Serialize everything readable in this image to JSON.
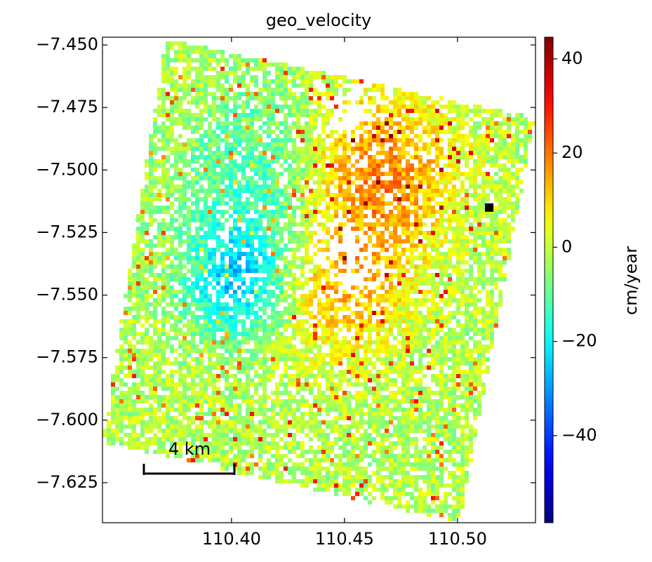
{
  "chart_data": {
    "type": "raster",
    "title": "geo_velocity",
    "colormap": "jet",
    "xlim": [
      110.3429,
      110.5345
    ],
    "ylim": [
      -7.641,
      -7.4469
    ],
    "xticks": [
      {
        "value": 110.4,
        "label": "110.40"
      },
      {
        "value": 110.45,
        "label": "110.45"
      },
      {
        "value": 110.5,
        "label": "110.50"
      }
    ],
    "yticks": [
      {
        "value": -7.45,
        "label": "−7.450"
      },
      {
        "value": -7.475,
        "label": "−7.475"
      },
      {
        "value": -7.5,
        "label": "−7.500"
      },
      {
        "value": -7.525,
        "label": "−7.525"
      },
      {
        "value": -7.55,
        "label": "−7.550"
      },
      {
        "value": -7.575,
        "label": "−7.575"
      },
      {
        "value": -7.6,
        "label": "−7.600"
      },
      {
        "value": -7.625,
        "label": "−7.625"
      }
    ],
    "colorbar": {
      "label": "cm/year",
      "clim": [
        -58.5,
        44.6
      ],
      "ticks": [
        40,
        20,
        0,
        {
          "value": -20,
          "label": "−20"
        },
        {
          "value": -40,
          "label": "−40"
        }
      ]
    },
    "reference_point": {
      "x": 110.514,
      "y": -7.515,
      "color": "#000000"
    },
    "scale_bar": {
      "label": "4 km"
    }
  }
}
